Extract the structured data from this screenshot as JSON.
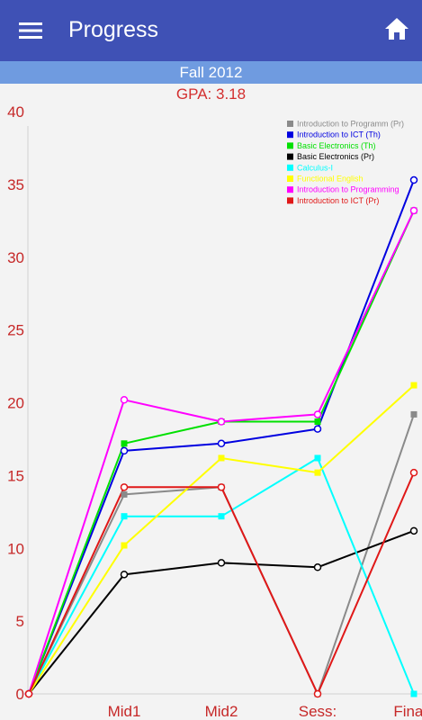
{
  "header": {
    "title": "Progress",
    "menu_icon": "hamburger-menu-icon",
    "home_icon": "home-icon",
    "background": "#3f51b5"
  },
  "semester": "Fall 2012",
  "gpa_text": "GPA: 3.18",
  "chart_data": {
    "type": "line",
    "title": "",
    "xlabel": "",
    "ylabel": "",
    "x": [
      "",
      "Mid1",
      "Mid2",
      "Sess:",
      "Finals"
    ],
    "ylim": [
      0,
      40
    ],
    "yticks": [
      0,
      5,
      10,
      15,
      20,
      25,
      30,
      35,
      40
    ],
    "grid": false,
    "legend": "top-right",
    "series": [
      {
        "name": "Introduction to Programm (Pr)",
        "color": "#8a8a8a",
        "marker": "square",
        "values": [
          0,
          13.7,
          14.2,
          0,
          19.2
        ]
      },
      {
        "name": "Introduction to ICT (Th)",
        "color": "#0000e0",
        "marker": "circle",
        "values": [
          0,
          16.7,
          17.2,
          18.2,
          35.3
        ]
      },
      {
        "name": "Basic Electronics (Th)",
        "color": "#00e000",
        "marker": "square",
        "values": [
          0,
          17.2,
          18.7,
          18.7,
          33.2
        ]
      },
      {
        "name": "Basic Electronics (Pr)",
        "color": "#000000",
        "marker": "circle",
        "values": [
          0,
          8.2,
          9.0,
          8.7,
          11.2
        ]
      },
      {
        "name": "Calculus-I",
        "color": "#00ffff",
        "marker": "square",
        "values": [
          0,
          12.2,
          12.2,
          16.2,
          0
        ]
      },
      {
        "name": "Functional English",
        "color": "#ffff00",
        "marker": "square",
        "values": [
          0,
          10.2,
          16.2,
          15.2,
          21.2
        ]
      },
      {
        "name": "Introduction to Programming",
        "color": "#ff00ff",
        "marker": "circle",
        "values": [
          0,
          20.2,
          18.7,
          19.2,
          33.2
        ]
      },
      {
        "name": "Introduction to ICT (Pr)",
        "color": "#e01818",
        "marker": "circle",
        "values": [
          0,
          14.2,
          14.2,
          0,
          15.2
        ]
      }
    ]
  }
}
